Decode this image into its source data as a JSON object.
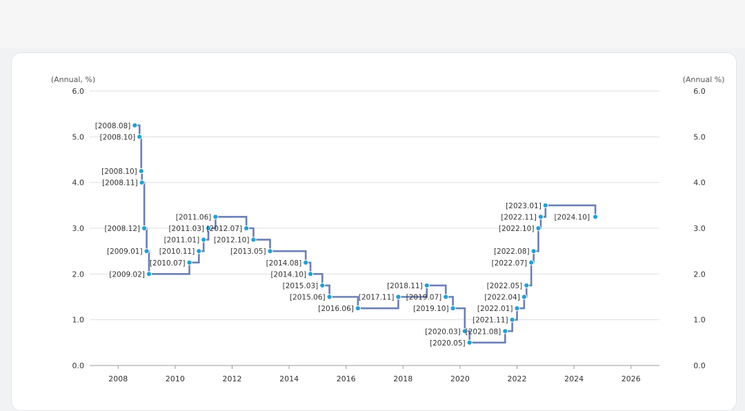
{
  "chart_data": {
    "type": "line",
    "step": true,
    "left_unit": "(Annual, %)",
    "right_unit": "(Annual %)",
    "ylim": [
      0,
      6
    ],
    "yticks": [
      "0.0",
      "1.0",
      "2.0",
      "3.0",
      "4.0",
      "5.0",
      "6.0"
    ],
    "xlim": [
      2007.0,
      2027.0
    ],
    "xticks": [
      "2008",
      "2010",
      "2012",
      "2014",
      "2016",
      "2018",
      "2020",
      "2022",
      "2024",
      "2026"
    ],
    "grid": true,
    "line_color": "#6a7fb6",
    "marker_color": "#1fa2d6",
    "points": [
      {
        "date": "2008.08",
        "value": 5.25,
        "label": "[2008.08]"
      },
      {
        "date": "2008.10",
        "value": 5.0,
        "label": "[2008.10]"
      },
      {
        "date": "2008.10",
        "value": 4.25,
        "label": "[2008.10]"
      },
      {
        "date": "2008.11",
        "value": 4.0,
        "label": "[2008.11]"
      },
      {
        "date": "2008.12",
        "value": 3.0,
        "label": "[2008.12]"
      },
      {
        "date": "2009.01",
        "value": 2.5,
        "label": "[2009.01]"
      },
      {
        "date": "2009.02",
        "value": 2.0,
        "label": "[2009.02]"
      },
      {
        "date": "2010.07",
        "value": 2.25,
        "label": "[2010.07]"
      },
      {
        "date": "2010.11",
        "value": 2.5,
        "label": "[2010.11]"
      },
      {
        "date": "2011.01",
        "value": 2.75,
        "label": "[2011.01]"
      },
      {
        "date": "2011.03",
        "value": 3.0,
        "label": "[2011.03]"
      },
      {
        "date": "2011.06",
        "value": 3.25,
        "label": "[2011.06]"
      },
      {
        "date": "2012.07",
        "value": 3.0,
        "label": "[2012.07]"
      },
      {
        "date": "2012.10",
        "value": 2.75,
        "label": "[2012.10]"
      },
      {
        "date": "2013.05",
        "value": 2.5,
        "label": "[2013.05]"
      },
      {
        "date": "2014.08",
        "value": 2.25,
        "label": "[2014.08]"
      },
      {
        "date": "2014.10",
        "value": 2.0,
        "label": "[2014.10]"
      },
      {
        "date": "2015.03",
        "value": 1.75,
        "label": "[2015.03]"
      },
      {
        "date": "2015.06",
        "value": 1.5,
        "label": "[2015.06]"
      },
      {
        "date": "2016.06",
        "value": 1.25,
        "label": "[2016.06]"
      },
      {
        "date": "2017.11",
        "value": 1.5,
        "label": "[2017.11]"
      },
      {
        "date": "2018.11",
        "value": 1.75,
        "label": "[2018.11]"
      },
      {
        "date": "2019.07",
        "value": 1.5,
        "label": "[2019.07]"
      },
      {
        "date": "2019.10",
        "value": 1.25,
        "label": "[2019.10]"
      },
      {
        "date": "2020.03",
        "value": 0.75,
        "label": "[2020.03]"
      },
      {
        "date": "2020.05",
        "value": 0.5,
        "label": "[2020.05]"
      },
      {
        "date": "2021.08",
        "value": 0.75,
        "label": "[2021.08]"
      },
      {
        "date": "2021.11",
        "value": 1.0,
        "label": "[2021.11]"
      },
      {
        "date": "2022.01",
        "value": 1.25,
        "label": "[2022.01]"
      },
      {
        "date": "2022.04",
        "value": 1.5,
        "label": "[2022.04]"
      },
      {
        "date": "2022.05",
        "value": 1.75,
        "label": "[2022.05]"
      },
      {
        "date": "2022.07",
        "value": 2.25,
        "label": "[2022.07]"
      },
      {
        "date": "2022.08",
        "value": 2.5,
        "label": "[2022.08]"
      },
      {
        "date": "2022.10",
        "value": 3.0,
        "label": "[2022.10]"
      },
      {
        "date": "2022.11",
        "value": 3.25,
        "label": "[2022.11]"
      },
      {
        "date": "2023.01",
        "value": 3.5,
        "label": "[2023.01]"
      },
      {
        "date": "2024.10",
        "value": 3.25,
        "label": "[2024.10]"
      }
    ]
  }
}
